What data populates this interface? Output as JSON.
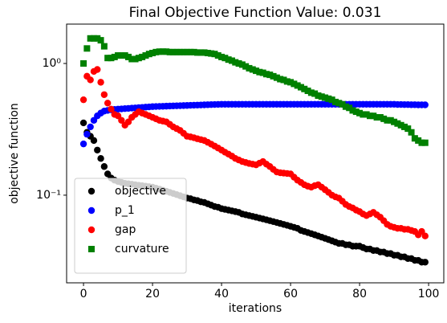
{
  "chart_data": {
    "type": "scatter",
    "title": "Final Objective Function Value: 0.031",
    "xlabel": "iterations",
    "ylabel": "objective function",
    "yscale": "log",
    "legend": "lower left",
    "xlim": [
      -4.9,
      104.4
    ],
    "ylim": [
      0.0216,
      1.99
    ],
    "xticks": [
      0,
      20,
      40,
      60,
      80,
      100
    ],
    "yticks": [
      {
        "value": 0.1,
        "label": "10⁻¹"
      },
      {
        "value": 1,
        "label": "10⁰"
      }
    ],
    "x": [
      0,
      1,
      2,
      3,
      4,
      5,
      6,
      7,
      8,
      9,
      10,
      11,
      12,
      13,
      14,
      15,
      16,
      17,
      18,
      19,
      20,
      21,
      22,
      23,
      24,
      25,
      26,
      27,
      28,
      29,
      30,
      31,
      32,
      33,
      34,
      35,
      36,
      37,
      38,
      39,
      40,
      41,
      42,
      43,
      44,
      45,
      46,
      47,
      48,
      49,
      50,
      51,
      52,
      53,
      54,
      55,
      56,
      57,
      58,
      59,
      60,
      61,
      62,
      63,
      64,
      65,
      66,
      67,
      68,
      69,
      70,
      71,
      72,
      73,
      74,
      75,
      76,
      77,
      78,
      79,
      80,
      81,
      82,
      83,
      84,
      85,
      86,
      87,
      88,
      89,
      90,
      91,
      92,
      93,
      94,
      95,
      96,
      97,
      98,
      99
    ],
    "series": [
      {
        "name": "objective",
        "color": "#000000",
        "marker": "circle",
        "values": [
          0.354,
          0.3,
          0.28,
          0.26,
          0.22,
          0.19,
          0.165,
          0.145,
          0.135,
          0.13,
          0.127,
          0.125,
          0.123,
          0.122,
          0.121,
          0.12,
          0.119,
          0.118,
          0.117,
          0.116,
          0.115,
          0.113,
          0.111,
          0.109,
          0.107,
          0.105,
          0.103,
          0.101,
          0.099,
          0.097,
          0.095,
          0.094,
          0.092,
          0.091,
          0.089,
          0.088,
          0.086,
          0.084,
          0.082,
          0.081,
          0.079,
          0.078,
          0.077,
          0.076,
          0.075,
          0.074,
          0.072,
          0.071,
          0.07,
          0.069,
          0.068,
          0.067,
          0.066,
          0.065,
          0.064,
          0.063,
          0.062,
          0.061,
          0.06,
          0.059,
          0.058,
          0.057,
          0.056,
          0.054,
          0.053,
          0.052,
          0.051,
          0.05,
          0.049,
          0.048,
          0.047,
          0.046,
          0.045,
          0.044,
          0.043,
          0.043,
          0.042,
          0.042,
          0.041,
          0.041,
          0.041,
          0.04,
          0.039,
          0.039,
          0.038,
          0.038,
          0.037,
          0.037,
          0.036,
          0.036,
          0.035,
          0.035,
          0.034,
          0.034,
          0.033,
          0.033,
          0.032,
          0.032,
          0.031,
          0.031
        ]
      },
      {
        "name": "p_1",
        "color": "#0000ff",
        "marker": "circle",
        "values": [
          0.245,
          0.29,
          0.33,
          0.37,
          0.4,
          0.42,
          0.435,
          0.44,
          0.445,
          0.448,
          0.45,
          0.452,
          0.454,
          0.456,
          0.458,
          0.46,
          0.462,
          0.464,
          0.466,
          0.468,
          0.47,
          0.471,
          0.472,
          0.473,
          0.474,
          0.475,
          0.476,
          0.477,
          0.478,
          0.479,
          0.48,
          0.481,
          0.482,
          0.483,
          0.484,
          0.485,
          0.486,
          0.487,
          0.488,
          0.489,
          0.49,
          0.49,
          0.49,
          0.49,
          0.49,
          0.49,
          0.49,
          0.49,
          0.49,
          0.49,
          0.49,
          0.49,
          0.49,
          0.49,
          0.49,
          0.49,
          0.49,
          0.49,
          0.49,
          0.49,
          0.49,
          0.49,
          0.49,
          0.49,
          0.49,
          0.49,
          0.49,
          0.49,
          0.49,
          0.49,
          0.49,
          0.49,
          0.49,
          0.49,
          0.49,
          0.49,
          0.49,
          0.49,
          0.49,
          0.49,
          0.49,
          0.49,
          0.49,
          0.49,
          0.49,
          0.49,
          0.49,
          0.49,
          0.49,
          0.49,
          0.49,
          0.488,
          0.488,
          0.487,
          0.487,
          0.486,
          0.486,
          0.485,
          0.485,
          0.485
        ]
      },
      {
        "name": "gap",
        "color": "#ff0000",
        "marker": "circle",
        "values": [
          0.53,
          0.8,
          0.75,
          0.87,
          0.9,
          0.72,
          0.58,
          0.5,
          0.45,
          0.41,
          0.4,
          0.37,
          0.34,
          0.36,
          0.39,
          0.41,
          0.43,
          0.42,
          0.41,
          0.4,
          0.39,
          0.38,
          0.37,
          0.365,
          0.36,
          0.345,
          0.33,
          0.32,
          0.31,
          0.295,
          0.28,
          0.277,
          0.273,
          0.268,
          0.264,
          0.26,
          0.252,
          0.244,
          0.236,
          0.228,
          0.22,
          0.212,
          0.205,
          0.198,
          0.19,
          0.185,
          0.18,
          0.177,
          0.174,
          0.172,
          0.17,
          0.175,
          0.18,
          0.172,
          0.165,
          0.157,
          0.15,
          0.148,
          0.147,
          0.146,
          0.145,
          0.137,
          0.13,
          0.125,
          0.12,
          0.117,
          0.115,
          0.118,
          0.12,
          0.115,
          0.11,
          0.105,
          0.1,
          0.097,
          0.095,
          0.09,
          0.085,
          0.082,
          0.08,
          0.077,
          0.075,
          0.072,
          0.07,
          0.072,
          0.074,
          0.071,
          0.068,
          0.064,
          0.06,
          0.058,
          0.057,
          0.056,
          0.056,
          0.055,
          0.055,
          0.054,
          0.053,
          0.05,
          0.053,
          0.049
        ]
      },
      {
        "name": "curvature",
        "color": "#008000",
        "marker": "square",
        "values": [
          1.0,
          1.3,
          1.55,
          1.55,
          1.55,
          1.5,
          1.35,
          1.1,
          1.1,
          1.12,
          1.15,
          1.15,
          1.15,
          1.12,
          1.08,
          1.08,
          1.1,
          1.12,
          1.15,
          1.18,
          1.2,
          1.22,
          1.23,
          1.23,
          1.23,
          1.22,
          1.22,
          1.22,
          1.22,
          1.22,
          1.22,
          1.22,
          1.22,
          1.21,
          1.21,
          1.21,
          1.2,
          1.19,
          1.18,
          1.15,
          1.12,
          1.1,
          1.07,
          1.05,
          1.02,
          1.0,
          0.98,
          0.95,
          0.92,
          0.9,
          0.88,
          0.86,
          0.85,
          0.83,
          0.82,
          0.8,
          0.78,
          0.76,
          0.75,
          0.73,
          0.72,
          0.7,
          0.68,
          0.66,
          0.64,
          0.62,
          0.6,
          0.59,
          0.57,
          0.56,
          0.55,
          0.54,
          0.53,
          0.51,
          0.5,
          0.49,
          0.47,
          0.46,
          0.44,
          0.43,
          0.42,
          0.41,
          0.41,
          0.4,
          0.4,
          0.39,
          0.39,
          0.38,
          0.37,
          0.37,
          0.36,
          0.35,
          0.34,
          0.33,
          0.32,
          0.3,
          0.27,
          0.26,
          0.25,
          0.25
        ]
      }
    ]
  }
}
